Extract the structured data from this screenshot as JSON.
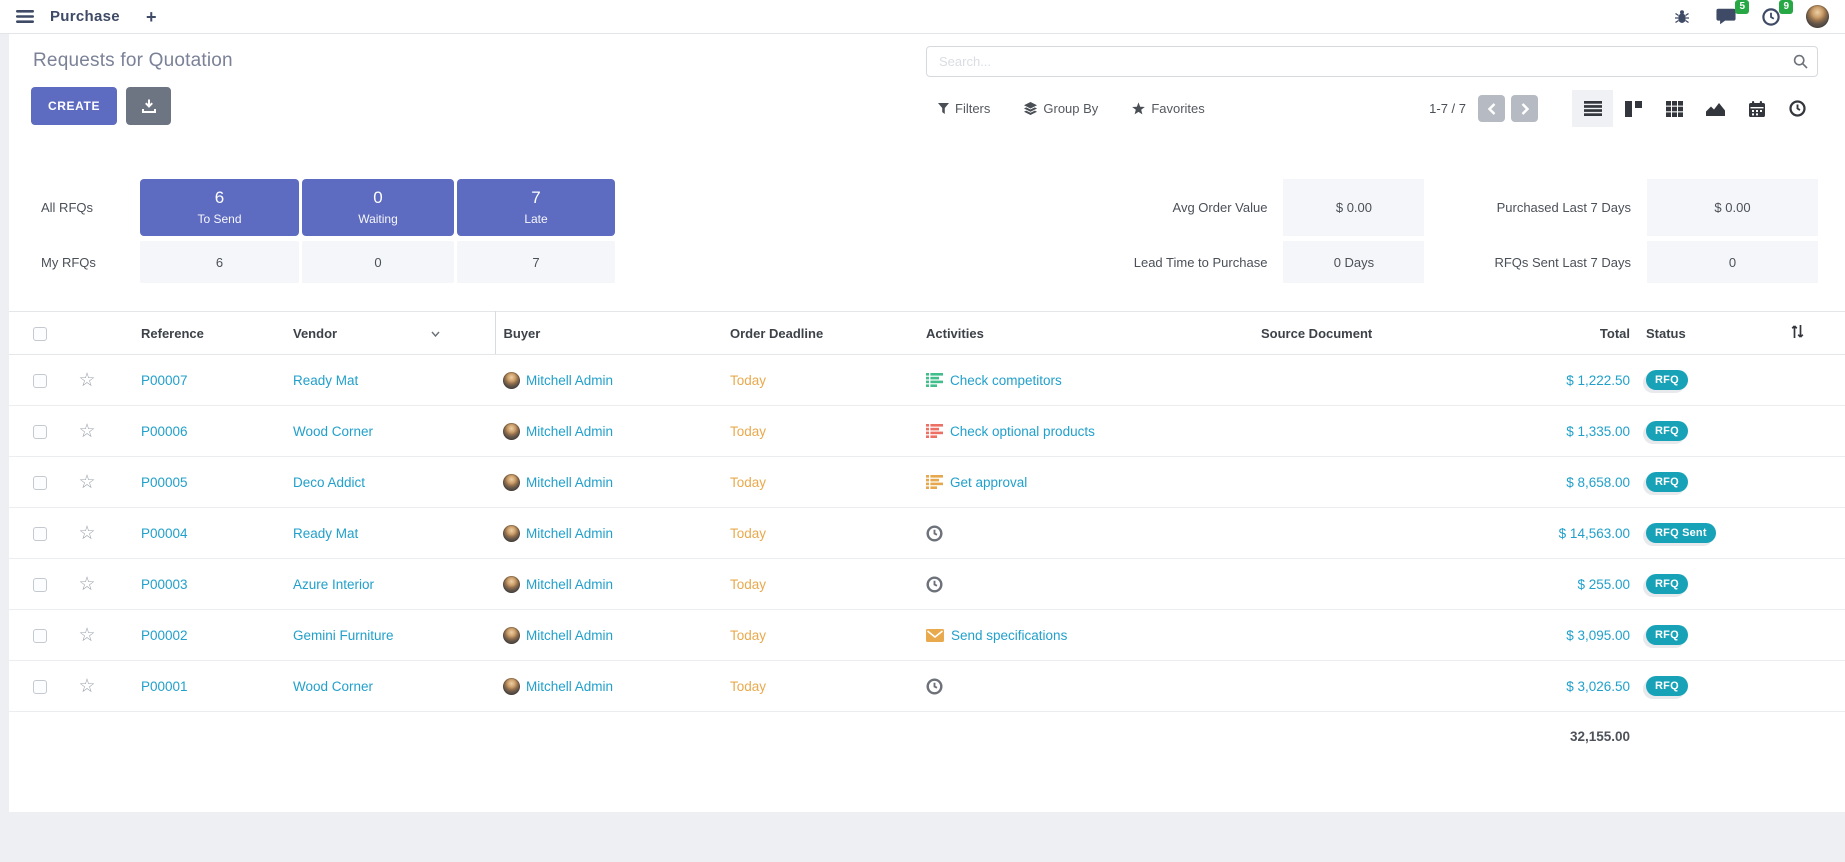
{
  "navbar": {
    "app_name": "Purchase",
    "new_tab_label": "+",
    "messages_badge": "5",
    "activities_badge": "9"
  },
  "control_panel": {
    "title": "Requests for Quotation",
    "create_label": "CREATE",
    "search_placeholder": "Search...",
    "filters_label": "Filters",
    "group_by_label": "Group By",
    "favorites_label": "Favorites",
    "pager_text": "1-7 / 7"
  },
  "dashboard": {
    "all_rfqs_label": "All RFQs",
    "my_rfqs_label": "My RFQs",
    "cards": [
      {
        "value": "6",
        "label": "To Send",
        "my_value": "6"
      },
      {
        "value": "0",
        "label": "Waiting",
        "my_value": "0"
      },
      {
        "value": "7",
        "label": "Late",
        "my_value": "7"
      }
    ],
    "stats": [
      {
        "label": "Avg Order Value",
        "value": "$ 0.00"
      },
      {
        "label": "Purchased Last 7 Days",
        "value": "$ 0.00"
      },
      {
        "label": "Lead Time to Purchase",
        "value": "0 Days"
      },
      {
        "label": "RFQs Sent Last 7 Days",
        "value": "0"
      }
    ]
  },
  "table": {
    "headers": {
      "reference": "Reference",
      "vendor": "Vendor",
      "buyer": "Buyer",
      "deadline": "Order Deadline",
      "activities": "Activities",
      "source": "Source Document",
      "total": "Total",
      "status": "Status"
    },
    "rows": [
      {
        "reference": "P00007",
        "vendor": "Ready Mat",
        "buyer": "Mitchell Admin",
        "deadline": "Today",
        "activity_icon": "list-green",
        "activity_label": "Check competitors",
        "total": "$ 1,222.50",
        "status": "RFQ"
      },
      {
        "reference": "P00006",
        "vendor": "Wood Corner",
        "buyer": "Mitchell Admin",
        "deadline": "Today",
        "activity_icon": "list-red",
        "activity_label": "Check optional products",
        "total": "$ 1,335.00",
        "status": "RFQ"
      },
      {
        "reference": "P00005",
        "vendor": "Deco Addict",
        "buyer": "Mitchell Admin",
        "deadline": "Today",
        "activity_icon": "list-yellow",
        "activity_label": "Get approval",
        "total": "$ 8,658.00",
        "status": "RFQ"
      },
      {
        "reference": "P00004",
        "vendor": "Ready Mat",
        "buyer": "Mitchell Admin",
        "deadline": "Today",
        "activity_icon": "clock",
        "activity_label": "",
        "total": "$ 14,563.00",
        "status": "RFQ Sent"
      },
      {
        "reference": "P00003",
        "vendor": "Azure Interior",
        "buyer": "Mitchell Admin",
        "deadline": "Today",
        "activity_icon": "clock",
        "activity_label": "",
        "total": "$ 255.00",
        "status": "RFQ"
      },
      {
        "reference": "P00002",
        "vendor": "Gemini Furniture",
        "buyer": "Mitchell Admin",
        "deadline": "Today",
        "activity_icon": "envelope",
        "activity_label": "Send specifications",
        "total": "$ 3,095.00",
        "status": "RFQ"
      },
      {
        "reference": "P00001",
        "vendor": "Wood Corner",
        "buyer": "Mitchell Admin",
        "deadline": "Today",
        "activity_icon": "clock",
        "activity_label": "",
        "total": "$ 3,026.50",
        "status": "RFQ"
      }
    ],
    "footer_total": "32,155.00"
  },
  "colors": {
    "primary": "#5D6BC0",
    "link": "#21A0CB",
    "status_badge": "#17A2B8",
    "deadline_warning": "#E9A94D",
    "counter_badge": "#28A745",
    "activity_green": "#41BE8B",
    "activity_red": "#EC7063",
    "activity_yellow": "#E5A84E",
    "activity_clock": "#6D727A"
  }
}
